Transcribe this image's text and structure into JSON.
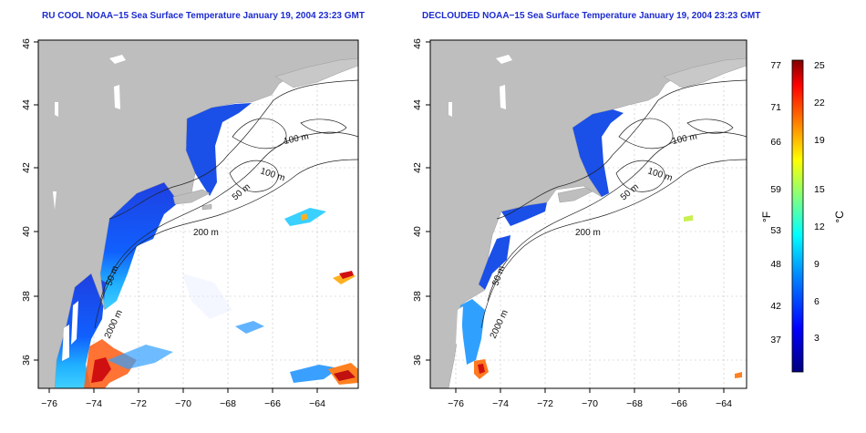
{
  "maps": [
    {
      "title": "RU COOL NOAA−15 Sea Surface Temperature January 19, 2004 23:23 GMT",
      "contour_labels": [
        "100 m",
        "100 m",
        "50 m",
        "200 m",
        "50 m",
        "2000 m"
      ]
    },
    {
      "title": "DECLOUDED NOAA−15 Sea Surface Temperature January 19, 2004 23:23 GMT",
      "contour_labels": [
        "100 m",
        "100 m",
        "50 m",
        "200 m",
        "50 m",
        "2000 m"
      ]
    }
  ],
  "axes": {
    "lat_ticks": [
      "36",
      "38",
      "40",
      "42",
      "44",
      "46"
    ],
    "lon_ticks": [
      "−76",
      "−74",
      "−72",
      "−70",
      "−68",
      "−66",
      "−64"
    ],
    "lat_range": [
      35,
      46
    ],
    "lon_range": [
      -77,
      -63
    ]
  },
  "colorbar": {
    "f_label": "°F",
    "c_label": "°C",
    "f_ticks": [
      "77",
      "71",
      "66",
      "59",
      "53",
      "48",
      "42",
      "37"
    ],
    "c_ticks": [
      "25",
      "22",
      "19",
      "15",
      "12",
      "9",
      "6",
      "3"
    ],
    "colors": [
      "#00007f",
      "#0000ff",
      "#0080ff",
      "#00ffff",
      "#80ff80",
      "#ffff00",
      "#ff8000",
      "#ff0000",
      "#7f0000"
    ]
  }
}
